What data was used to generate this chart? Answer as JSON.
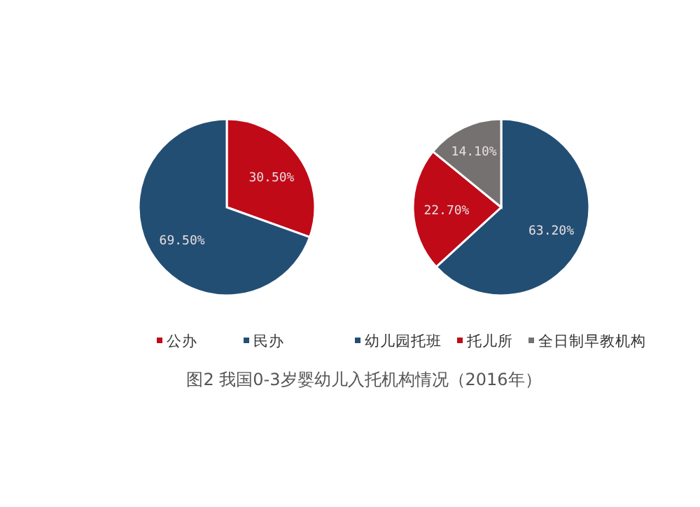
{
  "chart_data": [
    {
      "type": "pie",
      "categories": [
        "公办",
        "民办"
      ],
      "values": [
        30.5,
        69.5
      ],
      "colors": [
        "#c00a18",
        "#234e74"
      ],
      "value_labels": [
        "30.50%",
        "69.50%"
      ],
      "legend": "bottom",
      "annotations": [
        "图2 我国0-3岁婴幼儿入托机构情况（2016年）"
      ]
    },
    {
      "type": "pie",
      "categories": [
        "幼儿园托班",
        "托儿所",
        "全日制早教机构"
      ],
      "values": [
        63.2,
        22.7,
        14.1
      ],
      "colors": [
        "#234e74",
        "#c00a18",
        "#767171"
      ],
      "value_labels": [
        "63.20%",
        "22.70%",
        "14.10%"
      ],
      "legend": "bottom"
    }
  ]
}
